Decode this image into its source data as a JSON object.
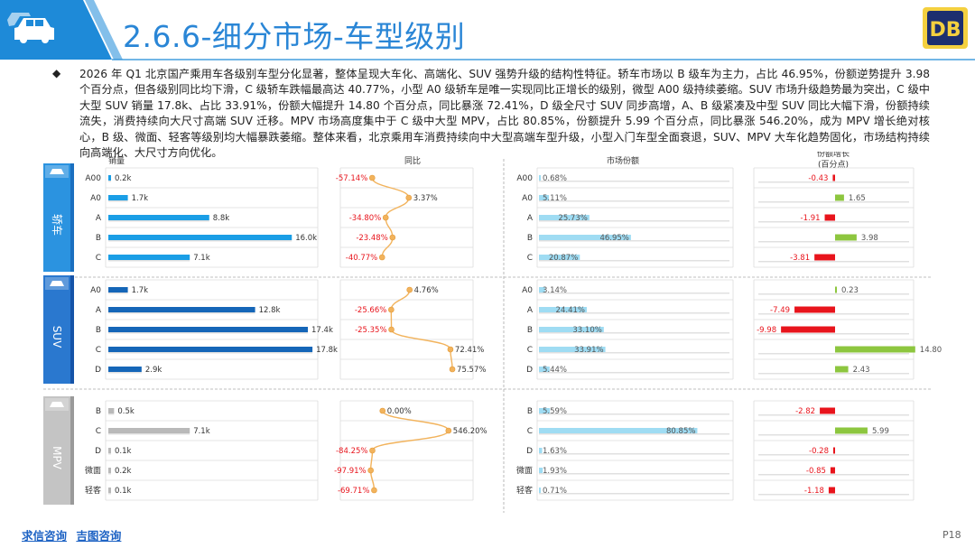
{
  "header": {
    "title": "2.6.6-细分市场-车型级别",
    "logo_text": "DB",
    "icon": "car-icon"
  },
  "paragraph": {
    "bullet": "◆",
    "text": "2026 年 Q1 北京国产乘用车各级别车型分化显著，整体呈现大车化、高端化、SUV 强势升级的结构性特征。轿车市场以 B 级车为主力，占比 46.95%，份额逆势提升 3.98 个百分点，但各级别同比均下滑，C 级轿车跌幅最高达 40.77%，小型 A0 级轿车是唯一实现同比正增长的级别，微型 A00 级持续萎缩。SUV 市场升级趋势最为突出，C 级中大型 SUV 销量 17.8k、占比 33.91%，份额大幅提升 14.80 个百分点，同比暴涨 72.41%，D 级全尺寸 SUV 同步高增，A、B 级紧凑及中型 SUV 同比大幅下滑，份额持续流失，消费持续向大尺寸高端 SUV 迁移。MPV 市场高度集中于 C 级中大型 MPV，占比 80.85%，份额提升 5.99 个百分点，同比暴涨 546.20%，成为 MPV 增长绝对核心，B 级、微面、轻客等级别均大幅暴跌萎缩。整体来看，北京乘用车消费持续向中大型高端车型升级，小型入门车型全面衰退，SUV、MPV 大车化趋势固化，市场结构持续向高端化、大尺寸方向优化。"
  },
  "footer": {
    "link1": "求信咨询",
    "link2": "吉图咨询",
    "page": "P18"
  },
  "colors": {
    "sedan_bar": "#1a9ee6",
    "suv_bar": "#1566b8",
    "mpv_bar": "#b9b9b9",
    "share_bar": "#9fdcf3",
    "pos_change": "#8dc63f",
    "neg_change": "#e8141c",
    "pos_yoy": "#333333",
    "neg_yoy": "#e8141c",
    "line": "#f2b35c"
  },
  "chart_data": {
    "type": "bar",
    "panel_headers": {
      "sales": "销量",
      "yoy": "同比",
      "share": "市场份额",
      "share_change": "份额增长",
      "share_change_sub": "(百分点)"
    },
    "groups": [
      {
        "name": "轿车",
        "categories": [
          "A00",
          "A0",
          "A",
          "B",
          "C"
        ],
        "sales": [
          0.2,
          1.7,
          8.8,
          16.0,
          7.1
        ],
        "sales_labels": [
          "0.2k",
          "1.7k",
          "8.8k",
          "16.0k",
          "7.1k"
        ],
        "sales_max": 18.5,
        "yoy": [
          -57.14,
          3.37,
          -34.8,
          -23.48,
          -40.77
        ],
        "yoy_labels": [
          "-57.14%",
          "3.37%",
          "-34.80%",
          "-23.48%",
          "-40.77%"
        ],
        "yoy_range": [
          -80,
          80
        ],
        "share": [
          0.68,
          5.11,
          25.73,
          46.95,
          20.87
        ],
        "share_labels": [
          "0.68%",
          "5.11%",
          "25.73%",
          "46.95%",
          "20.87%"
        ],
        "share_change": [
          -0.43,
          1.65,
          -1.91,
          3.98,
          -3.81
        ],
        "share_change_labels": [
          "-0.43",
          "1.65",
          "-1.91",
          "3.98",
          "-3.81"
        ]
      },
      {
        "name": "SUV",
        "categories": [
          "A0",
          "A",
          "B",
          "C",
          "D"
        ],
        "sales": [
          1.7,
          12.8,
          17.4,
          17.8,
          2.9
        ],
        "sales_labels": [
          "1.7k",
          "12.8k",
          "17.4k",
          "17.8k",
          "2.9k"
        ],
        "sales_max": 18.5,
        "yoy": [
          4.76,
          -25.66,
          -25.35,
          72.41,
          75.57
        ],
        "yoy_labels": [
          "4.76%",
          "-25.66%",
          "-25.35%",
          "72.41%",
          "75.57%"
        ],
        "yoy_range": [
          -80,
          80
        ],
        "share": [
          3.14,
          24.41,
          33.1,
          33.91,
          5.44
        ],
        "share_labels": [
          "3.14%",
          "24.41%",
          "33.10%",
          "33.91%",
          "5.44%"
        ],
        "share_change": [
          0.23,
          -7.49,
          -9.98,
          14.8,
          2.43
        ],
        "share_change_labels": [
          "0.23",
          "-7.49",
          "-9.98",
          "14.80",
          "2.43"
        ]
      },
      {
        "name": "MPV",
        "categories": [
          "B",
          "C",
          "D",
          "微面",
          "轻客"
        ],
        "sales": [
          0.5,
          7.1,
          0.1,
          0.2,
          0.1
        ],
        "sales_labels": [
          "0.5k",
          "7.1k",
          "0.1k",
          "0.2k",
          "0.1k"
        ],
        "sales_max": 18.5,
        "yoy": [
          0.0,
          546.2,
          -84.25,
          -97.91,
          -69.71
        ],
        "yoy_labels": [
          "0.00%",
          "546.20%",
          "-84.25%",
          "-97.91%",
          "-69.71%"
        ],
        "yoy_range": [
          -200,
          600
        ],
        "share": [
          5.59,
          80.85,
          1.63,
          1.93,
          0.71
        ],
        "share_labels": [
          "5.59%",
          "80.85%",
          "1.63%",
          "1.93%",
          "0.71%"
        ],
        "share_change": [
          -2.82,
          5.99,
          -0.28,
          -0.85,
          -1.18
        ],
        "share_change_labels": [
          "-2.82",
          "5.99",
          "-0.28",
          "-0.85",
          "-1.18"
        ]
      }
    ]
  }
}
